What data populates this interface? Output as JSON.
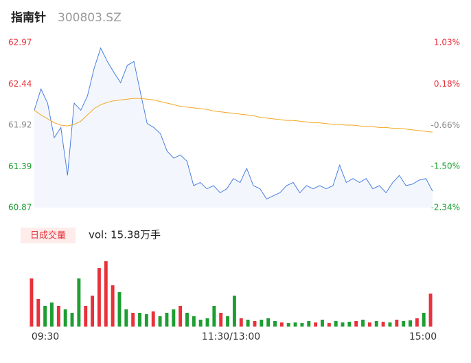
{
  "chart_data": [
    {
      "type": "line",
      "title": "指南针",
      "subtitle": "300803.SZ",
      "xlim": [
        0,
        240
      ],
      "ylim": [
        60.87,
        62.97
      ],
      "yticks": [
        62.97,
        62.44,
        61.92,
        61.39,
        60.87
      ],
      "y2lim": [
        -2.34,
        1.03
      ],
      "y2ticks": [
        {
          "value": 1.03,
          "label": "1.03%"
        },
        {
          "value": 0.18,
          "label": "0.18%"
        },
        {
          "value": -0.66,
          "label": "-0.66%"
        },
        {
          "value": -1.5,
          "label": "-1.50%"
        },
        {
          "value": -2.34,
          "label": "-2.34%"
        }
      ],
      "up_color": "#e8313b",
      "flat_color": "#888888",
      "down_color": "#1e9e32",
      "series": [
        {
          "color": "#4a7fe0",
          "fill": "#f3f7fd",
          "x": [
            0,
            4,
            8,
            12,
            16,
            20,
            24,
            28,
            32,
            36,
            40,
            44,
            48,
            52,
            56,
            60,
            64,
            68,
            72,
            76,
            80,
            84,
            88,
            92,
            96,
            100,
            104,
            108,
            112,
            116,
            120,
            124,
            128,
            132,
            136,
            140,
            144,
            148,
            152,
            156,
            160,
            164,
            168,
            172,
            176,
            180,
            184,
            188,
            192,
            196,
            200,
            204,
            208,
            212,
            216,
            220,
            224,
            228,
            232,
            236,
            240
          ],
          "values": [
            62.11,
            62.38,
            62.2,
            61.76,
            61.89,
            61.28,
            62.2,
            62.11,
            62.29,
            62.64,
            62.9,
            62.73,
            62.59,
            62.46,
            62.68,
            62.73,
            62.33,
            61.94,
            61.89,
            61.81,
            61.59,
            61.5,
            61.54,
            61.46,
            61.15,
            61.19,
            61.11,
            61.15,
            61.06,
            61.11,
            61.24,
            61.19,
            61.37,
            61.15,
            61.11,
            60.98,
            61.02,
            61.06,
            61.15,
            61.19,
            61.06,
            61.15,
            61.11,
            61.15,
            61.11,
            61.15,
            61.41,
            61.19,
            61.24,
            61.19,
            61.24,
            61.11,
            61.15,
            61.06,
            61.19,
            61.28,
            61.15,
            61.17,
            61.22,
            61.24,
            61.08
          ]
        },
        {
          "color": "#f5a623",
          "x": [
            0,
            4,
            8,
            12,
            16,
            20,
            24,
            28,
            32,
            36,
            40,
            44,
            48,
            52,
            56,
            60,
            64,
            68,
            72,
            76,
            80,
            84,
            88,
            92,
            96,
            100,
            104,
            108,
            112,
            116,
            120,
            124,
            128,
            132,
            136,
            140,
            144,
            148,
            152,
            156,
            160,
            164,
            168,
            172,
            176,
            180,
            184,
            188,
            192,
            196,
            200,
            204,
            208,
            212,
            216,
            220,
            224,
            228,
            232,
            236,
            240
          ],
          "values": [
            62.11,
            62.05,
            62.0,
            61.95,
            61.92,
            61.91,
            61.93,
            61.97,
            62.05,
            62.13,
            62.18,
            62.21,
            62.23,
            62.24,
            62.25,
            62.26,
            62.26,
            62.25,
            62.24,
            62.22,
            62.2,
            62.18,
            62.16,
            62.15,
            62.14,
            62.13,
            62.12,
            62.1,
            62.09,
            62.08,
            62.07,
            62.06,
            62.05,
            62.04,
            62.02,
            62.01,
            62.0,
            61.99,
            61.98,
            61.98,
            61.97,
            61.96,
            61.95,
            61.95,
            61.94,
            61.93,
            61.93,
            61.92,
            61.92,
            61.91,
            61.9,
            61.9,
            61.89,
            61.89,
            61.88,
            61.88,
            61.87,
            61.86,
            61.85,
            61.84,
            61.83
          ]
        }
      ]
    },
    {
      "type": "bar",
      "title": "日成交量",
      "annotation": "vol: 15.38万手",
      "xlim": [
        0,
        240
      ],
      "ylim": [
        0,
        5000
      ],
      "xticks": [
        {
          "value": 0,
          "label": "09:30"
        },
        {
          "value": 120,
          "label": "11:30/13:00"
        },
        {
          "value": 240,
          "label": "15:00"
        }
      ],
      "up_color": "#e8313b",
      "down_color": "#1e9e32",
      "x": [
        2,
        6,
        10,
        14,
        18,
        22,
        26,
        30,
        34,
        38,
        42,
        46,
        50,
        54,
        58,
        62,
        66,
        70,
        74,
        78,
        82,
        86,
        90,
        94,
        98,
        102,
        106,
        110,
        114,
        118,
        122,
        126,
        130,
        134,
        138,
        142,
        146,
        150,
        154,
        158,
        162,
        166,
        170,
        174,
        178,
        182,
        186,
        190,
        194,
        198,
        202,
        206,
        210,
        214,
        218,
        222,
        226,
        230,
        234,
        238
      ],
      "values": [
        3500,
        2000,
        1500,
        1750,
        1500,
        1250,
        1000,
        3500,
        1500,
        2250,
        4250,
        4750,
        3000,
        2500,
        1250,
        1000,
        1000,
        900,
        1100,
        750,
        1000,
        1250,
        1500,
        1000,
        750,
        500,
        600,
        1500,
        1000,
        750,
        2250,
        600,
        500,
        400,
        500,
        600,
        400,
        300,
        250,
        300,
        250,
        400,
        300,
        500,
        250,
        400,
        300,
        350,
        400,
        500,
        300,
        400,
        350,
        300,
        500,
        400,
        450,
        600,
        1000,
        2400
      ],
      "up": [
        true,
        true,
        false,
        false,
        true,
        false,
        false,
        false,
        true,
        true,
        true,
        true,
        true,
        false,
        false,
        true,
        false,
        false,
        true,
        false,
        false,
        false,
        true,
        false,
        false,
        false,
        false,
        false,
        true,
        false,
        false,
        true,
        false,
        true,
        false,
        false,
        false,
        true,
        false,
        false,
        false,
        false,
        true,
        false,
        true,
        false,
        false,
        false,
        true,
        false,
        true,
        false,
        true,
        false,
        true,
        false,
        false,
        true,
        false,
        true
      ]
    }
  ]
}
